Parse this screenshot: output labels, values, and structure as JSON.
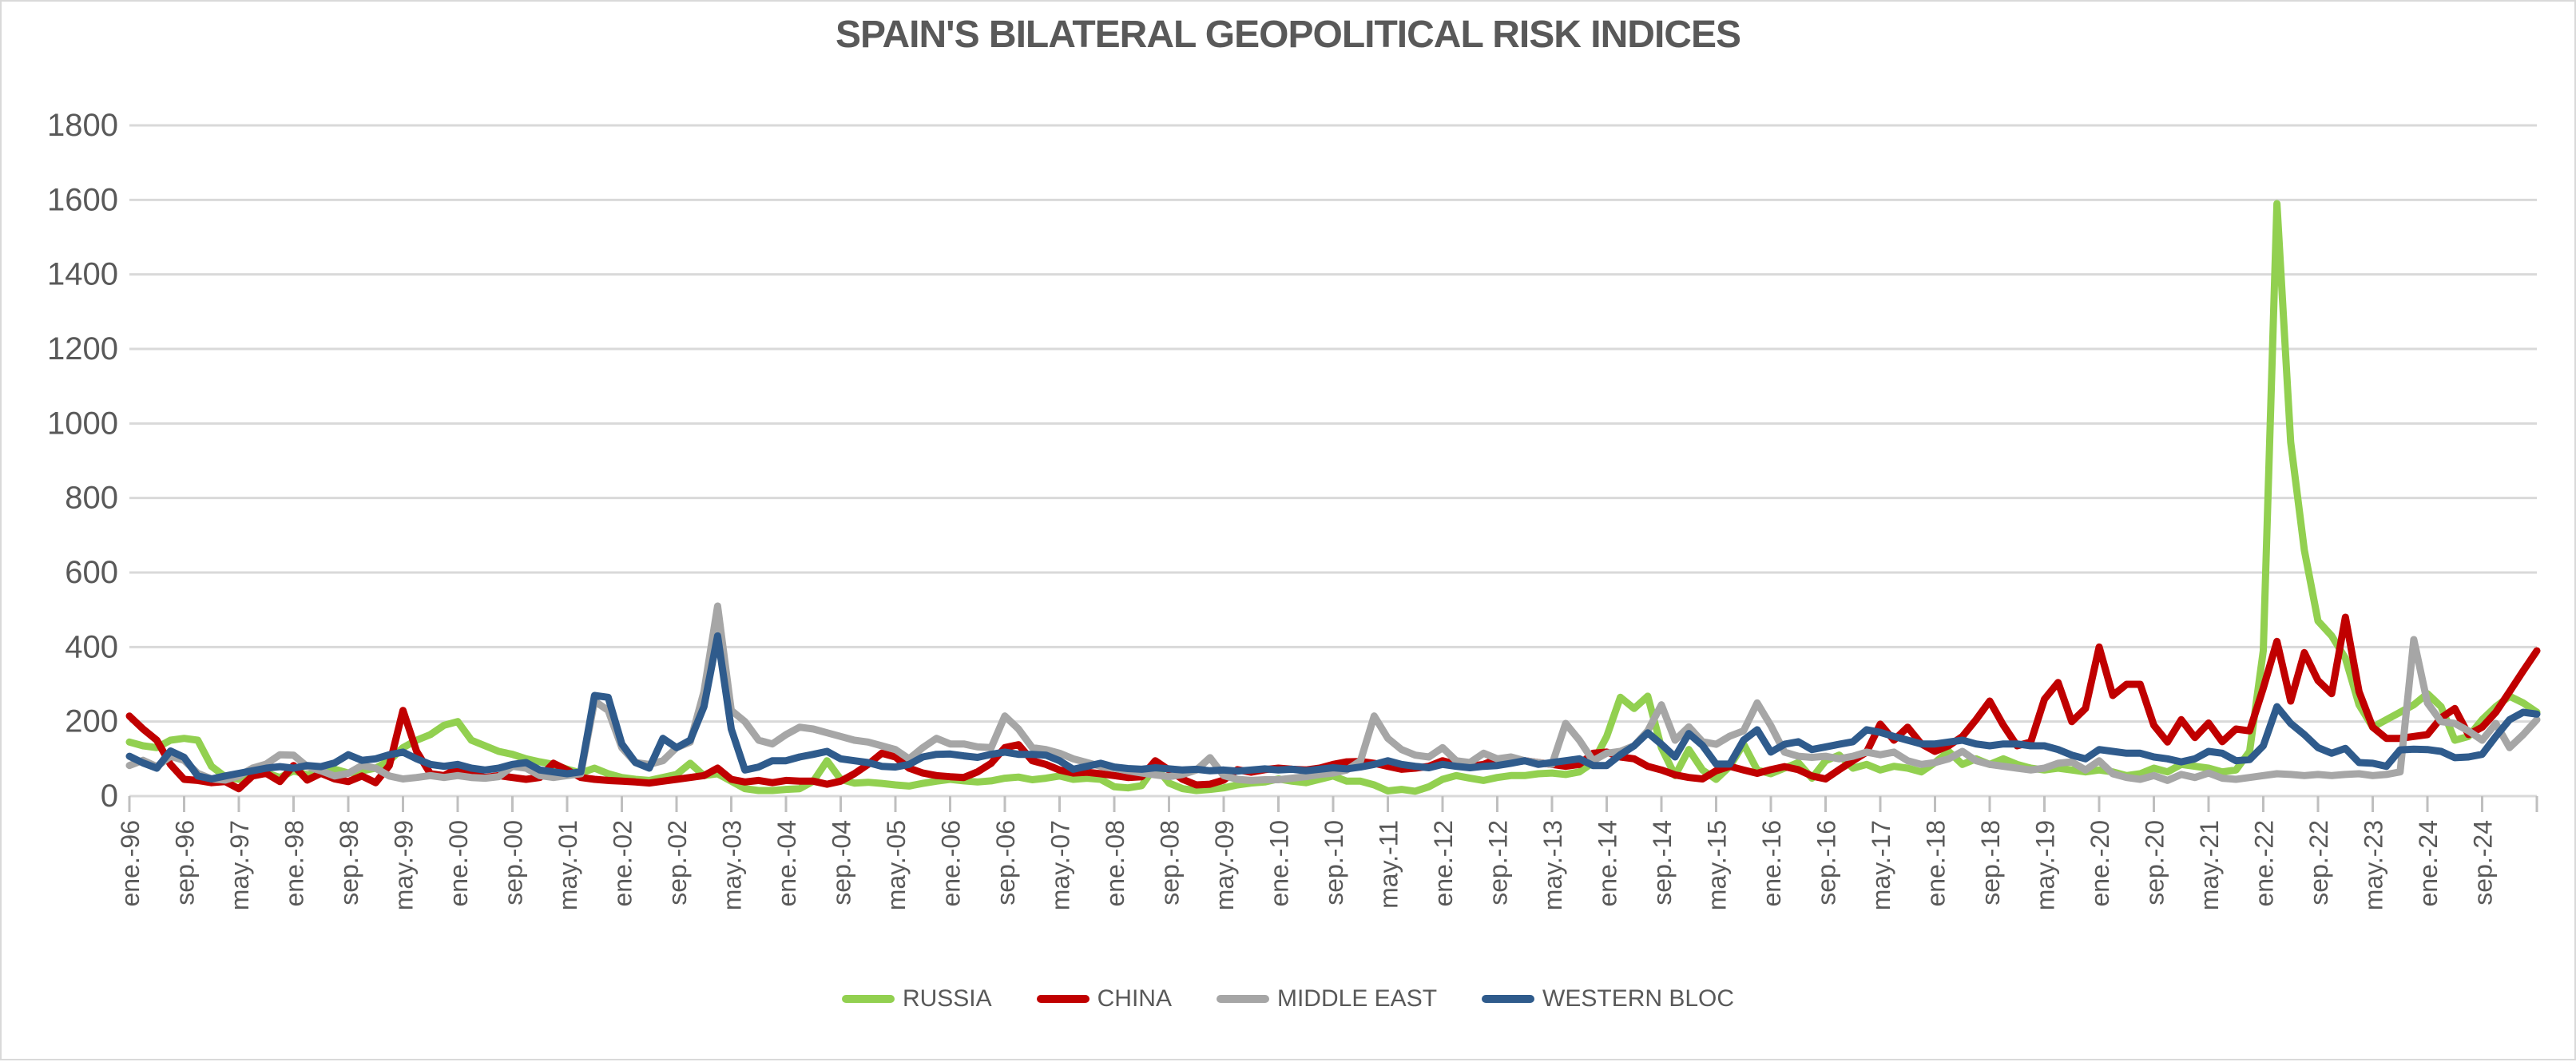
{
  "chart_data": {
    "type": "line",
    "title": "SPAIN'S BILATERAL GEOPOLITICAL RISK INDICES",
    "x_axis": {
      "start_label": "ene.-96",
      "months_per_point": 2,
      "label_every_n_points": 4,
      "tick_labels": [
        "ene.-96",
        "sep.-96",
        "may.-97",
        "ene.-98",
        "sep.-98",
        "may.-99",
        "ene.-00",
        "sep.-00",
        "may.-01",
        "ene.-02",
        "sep.-02",
        "may.-03",
        "ene.-04",
        "sep.-04",
        "may.-05",
        "ene.-06",
        "sep.-06",
        "may.-07",
        "ene.-08",
        "sep.-08",
        "may.-09",
        "ene.-10",
        "sep.-10",
        "may.-11",
        "ene.-12",
        "sep.-12",
        "may.-13",
        "ene.-14",
        "sep.-14",
        "may.-15",
        "ene.-16",
        "sep.-16",
        "may.-17",
        "ene.-18",
        "sep.-18",
        "may.-19",
        "ene.-20",
        "sep.-20",
        "may.-21",
        "ene.-22",
        "sep.-22",
        "may.-23",
        "ene.-24",
        "sep.-24"
      ]
    },
    "y_axis": {
      "min": 0,
      "max": 1800,
      "step": 200,
      "ticks": [
        0,
        200,
        400,
        600,
        800,
        1000,
        1200,
        1400,
        1600,
        1800
      ]
    },
    "grid": true,
    "legend_position": "bottom",
    "series": [
      {
        "name": "RUSSIA",
        "color": "#92D050",
        "values": [
          145,
          135,
          130,
          150,
          155,
          150,
          80,
          52,
          45,
          55,
          62,
          50,
          68,
          57,
          62,
          72,
          62,
          68,
          75,
          95,
          130,
          150,
          165,
          190,
          200,
          150,
          135,
          120,
          112,
          100,
          92,
          85,
          72,
          62,
          75,
          60,
          50,
          45,
          42,
          50,
          58,
          88,
          55,
          60,
          40,
          20,
          15,
          15,
          18,
          20,
          40,
          95,
          45,
          35,
          37,
          34,
          30,
          27,
          34,
          40,
          45,
          41,
          38,
          41,
          48,
          51,
          44,
          48,
          54,
          45,
          48,
          45,
          25,
          22,
          28,
          80,
          35,
          20,
          15,
          18,
          22,
          30,
          35,
          38,
          46,
          40,
          36,
          45,
          54,
          40,
          40,
          30,
          14,
          18,
          13,
          25,
          45,
          55,
          48,
          42,
          50,
          55,
          55,
          60,
          62,
          58,
          65,
          90,
          160,
          265,
          235,
          268,
          130,
          55,
          125,
          70,
          45,
          80,
          140,
          70,
          60,
          75,
          90,
          48,
          95,
          110,
          75,
          85,
          70,
          80,
          75,
          65,
          90,
          120,
          85,
          100,
          85,
          100,
          85,
          75,
          70,
          75,
          70,
          65,
          70,
          65,
          55,
          60,
          75,
          65,
          85,
          80,
          75,
          65,
          70,
          120,
          390,
          1590,
          950,
          660,
          470,
          430,
          370,
          245,
          185,
          205,
          225,
          245,
          275,
          240,
          150,
          160,
          205,
          240,
          268,
          250,
          225
        ]
      },
      {
        "name": "CHINA",
        "color": "#C00000",
        "values": [
          215,
          180,
          150,
          85,
          45,
          42,
          36,
          39,
          20,
          54,
          61,
          39,
          82,
          43,
          61,
          46,
          39,
          54,
          36,
          82,
          230,
          120,
          60,
          55,
          75,
          60,
          50,
          55,
          50,
          45,
          50,
          88,
          70,
          50,
          45,
          42,
          40,
          38,
          35,
          40,
          45,
          50,
          55,
          75,
          45,
          38,
          42,
          36,
          42,
          40,
          40,
          32,
          40,
          60,
          85,
          115,
          105,
          75,
          62,
          55,
          52,
          50,
          65,
          88,
          130,
          138,
          95,
          85,
          70,
          62,
          64,
          60,
          55,
          50,
          52,
          95,
          70,
          45,
          30,
          32,
          43,
          71,
          64,
          71,
          75,
          72,
          70,
          75,
          85,
          92,
          93,
          88,
          80,
          72,
          75,
          80,
          95,
          85,
          80,
          85,
          100,
          90,
          95,
          90,
          85,
          80,
          85,
          115,
          118,
          105,
          100,
          80,
          70,
          57,
          50,
          46,
          68,
          80,
          70,
          61,
          71,
          79,
          71,
          54,
          46,
          71,
          95,
          118,
          193,
          150,
          185,
          140,
          120,
          135,
          160,
          205,
          255,
          190,
          135,
          145,
          260,
          305,
          200,
          235,
          400,
          270,
          300,
          300,
          190,
          145,
          205,
          157,
          196,
          146,
          180,
          175,
          290,
          415,
          255,
          385,
          310,
          275,
          480,
          280,
          185,
          155,
          155,
          160,
          165,
          210,
          235,
          165,
          185,
          225,
          280,
          336,
          390
        ]
      },
      {
        "name": "MIDDLE EAST",
        "color": "#A6A6A6",
        "values": [
          82,
          96,
          79,
          107,
          96,
          61,
          46,
          43,
          54,
          75,
          86,
          111,
          110,
          79,
          68,
          54,
          61,
          82,
          75,
          54,
          46,
          50,
          55,
          50,
          55,
          50,
          48,
          52,
          80,
          75,
          55,
          50,
          55,
          60,
          255,
          230,
          130,
          90,
          85,
          95,
          130,
          145,
          280,
          510,
          230,
          200,
          150,
          140,
          165,
          185,
          180,
          170,
          160,
          150,
          145,
          135,
          125,
          100,
          130,
          155,
          140,
          140,
          132,
          130,
          215,
          180,
          130,
          125,
          115,
          100,
          90,
          80,
          75,
          68,
          62,
          57,
          52,
          58,
          70,
          103,
          55,
          45,
          42,
          44,
          44,
          48,
          52,
          58,
          62,
          70,
          95,
          215,
          155,
          125,
          110,
          105,
          130,
          95,
          90,
          115,
          100,
          105,
          95,
          90,
          85,
          195,
          150,
          95,
          115,
          120,
          135,
          175,
          245,
          150,
          186,
          146,
          139,
          161,
          175,
          250,
          189,
          118,
          107,
          104,
          107,
          100,
          107,
          118,
          111,
          118,
          95,
          85,
          90,
          100,
          120,
          95,
          85,
          80,
          75,
          70,
          75,
          88,
          92,
          70,
          95,
          60,
          50,
          45,
          55,
          42,
          58,
          50,
          62,
          48,
          45,
          50,
          55,
          60,
          58,
          55,
          58,
          55,
          58,
          60,
          55,
          58,
          65,
          420,
          250,
          200,
          195,
          175,
          150,
          195,
          130,
          165,
          205
        ]
      },
      {
        "name": "WESTERN BLOC",
        "color": "#2F5B8C",
        "values": [
          107,
          89,
          75,
          121,
          104,
          54,
          46,
          54,
          61,
          68,
          75,
          79,
          75,
          82,
          79,
          89,
          111,
          96,
          100,
          111,
          118,
          100,
          85,
          80,
          85,
          75,
          70,
          75,
          85,
          90,
          70,
          65,
          60,
          65,
          270,
          265,
          140,
          90,
          75,
          155,
          130,
          150,
          240,
          430,
          180,
          70,
          78,
          95,
          95,
          105,
          112,
          120,
          100,
          95,
          90,
          80,
          78,
          85,
          105,
          112,
          113,
          108,
          104,
          112,
          118,
          112,
          112,
          110,
          95,
          72,
          80,
          88,
          78,
          74,
          72,
          76,
          73,
          70,
          72,
          68,
          70,
          67,
          70,
          73,
          70,
          72,
          68,
          72,
          76,
          73,
          78,
          85,
          95,
          85,
          80,
          76,
          85,
          80,
          76,
          80,
          82,
          88,
          95,
          85,
          90,
          95,
          100,
          82,
          82,
          111,
          135,
          170,
          139,
          105,
          168,
          136,
          86,
          86,
          150,
          178,
          118,
          139,
          146,
          125,
          132,
          139,
          146,
          178,
          171,
          160,
          150,
          140,
          140,
          145,
          150,
          140,
          135,
          140,
          140,
          135,
          135,
          125,
          110,
          100,
          125,
          120,
          115,
          115,
          105,
          100,
          92,
          100,
          120,
          115,
          95,
          98,
          135,
          240,
          195,
          165,
          130,
          115,
          128,
          90,
          88,
          80,
          124,
          126,
          125,
          120,
          103,
          105,
          112,
          160,
          205,
          225,
          220
        ]
      }
    ]
  },
  "style": {
    "text_color": "#595959",
    "grid_color": "#D9D9D9",
    "tick_color": "#BFBFBF",
    "background": "#FFFFFF"
  }
}
